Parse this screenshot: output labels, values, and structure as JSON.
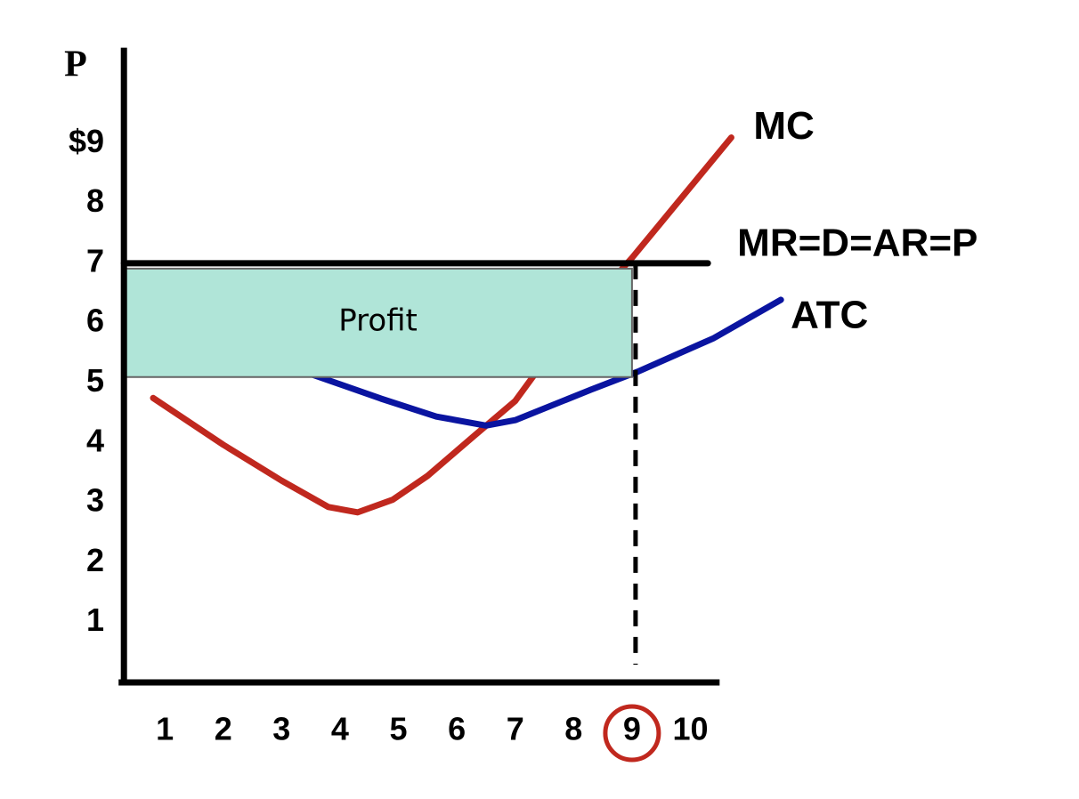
{
  "chart_data": {
    "type": "line",
    "y_label": "P",
    "xlim": [
      0.3,
      10.5
    ],
    "ylim": [
      0,
      10.6
    ],
    "xticks": [
      1,
      2,
      3,
      4,
      5,
      6,
      7,
      8,
      9,
      10
    ],
    "yticks": [
      1,
      2,
      3,
      4,
      5,
      6,
      7,
      8,
      {
        "value": 9,
        "label": "$9"
      }
    ],
    "series": [
      {
        "name": "MC",
        "color": "#c0281e",
        "x": [
          0.8,
          2,
          3,
          3.8,
          4.3,
          4.9,
          5.5,
          6.3,
          7,
          7.9,
          9,
          10.7
        ],
        "values": [
          4.75,
          3.97,
          3.37,
          2.93,
          2.84,
          3.05,
          3.45,
          4.12,
          4.7,
          5.9,
          7.09,
          9.1
        ]
      },
      {
        "name": "ATC",
        "color": "#0a14a0",
        "x": [
          3.5,
          4.7,
          5.65,
          6.5,
          7,
          8.3,
          9.1,
          10.4,
          11.55
        ],
        "values": [
          5.15,
          4.74,
          4.44,
          4.29,
          4.38,
          4.89,
          5.19,
          5.75,
          6.39
        ]
      },
      {
        "name": "MR=D=AR=P",
        "color": "#000000",
        "x": [
          0.3,
          10.3
        ],
        "values": [
          7,
          7
        ]
      }
    ],
    "profit": {
      "label": "Profit",
      "x": 9,
      "top": 7,
      "bottom": 5.1,
      "color": "#b0e5d8"
    },
    "dashed_x": 9,
    "circled_xtick": 9
  }
}
